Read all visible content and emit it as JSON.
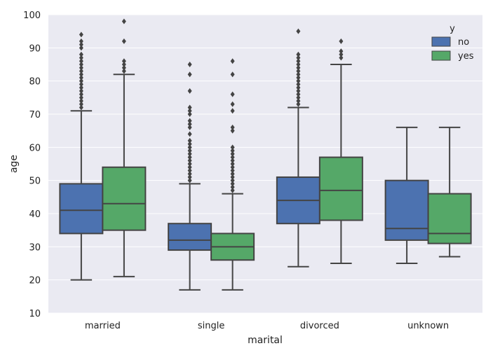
{
  "chart_data": {
    "type": "box",
    "xlabel": "marital",
    "ylabel": "age",
    "ylim": [
      10,
      100
    ],
    "yticks": [
      10,
      20,
      30,
      40,
      50,
      60,
      70,
      80,
      90,
      100
    ],
    "categories": [
      "married",
      "single",
      "divorced",
      "unknown"
    ],
    "legend": {
      "title": "y",
      "placement": "top-right"
    },
    "grid": true,
    "series": [
      {
        "name": "no",
        "color": "#4c72b0",
        "boxes": [
          {
            "whisker_low": 20,
            "q1": 34,
            "median": 41,
            "q3": 49,
            "whisker_high": 71,
            "outliers": [
              72,
              73,
              74,
              75,
              76,
              77,
              78,
              79,
              80,
              81,
              82,
              83,
              84,
              85,
              86,
              87,
              88,
              90,
              91,
              92,
              94
            ]
          },
          {
            "whisker_low": 17,
            "q1": 29,
            "median": 32,
            "q3": 37,
            "whisker_high": 49,
            "outliers": [
              50,
              51,
              52,
              53,
              54,
              55,
              56,
              57,
              58,
              59,
              60,
              61,
              62,
              64,
              66,
              67,
              68,
              70,
              71,
              72,
              77,
              82,
              85
            ]
          },
          {
            "whisker_low": 24,
            "q1": 37,
            "median": 44,
            "q3": 51,
            "whisker_high": 72,
            "outliers": [
              73,
              74,
              75,
              76,
              77,
              78,
              79,
              80,
              81,
              82,
              83,
              84,
              85,
              86,
              87,
              88,
              95
            ]
          },
          {
            "whisker_low": 25,
            "q1": 32,
            "median": 35.5,
            "q3": 50,
            "whisker_high": 66,
            "outliers": []
          }
        ]
      },
      {
        "name": "yes",
        "color": "#55a868",
        "boxes": [
          {
            "whisker_low": 21,
            "q1": 35,
            "median": 43,
            "q3": 54,
            "whisker_high": 82,
            "outliers": [
              83,
              84,
              85,
              86,
              92,
              98
            ]
          },
          {
            "whisker_low": 17,
            "q1": 26,
            "median": 30,
            "q3": 34,
            "whisker_high": 46,
            "outliers": [
              47,
              48,
              49,
              50,
              51,
              52,
              53,
              54,
              55,
              56,
              57,
              58,
              59,
              60,
              65,
              66,
              71,
              73,
              76,
              82,
              86
            ]
          },
          {
            "whisker_low": 25,
            "q1": 38,
            "median": 47,
            "q3": 57,
            "whisker_high": 85,
            "outliers": [
              87,
              88,
              89,
              92
            ]
          },
          {
            "whisker_low": 27,
            "q1": 31,
            "median": 34,
            "q3": 46,
            "whisker_high": 66,
            "outliers": []
          }
        ]
      }
    ]
  }
}
